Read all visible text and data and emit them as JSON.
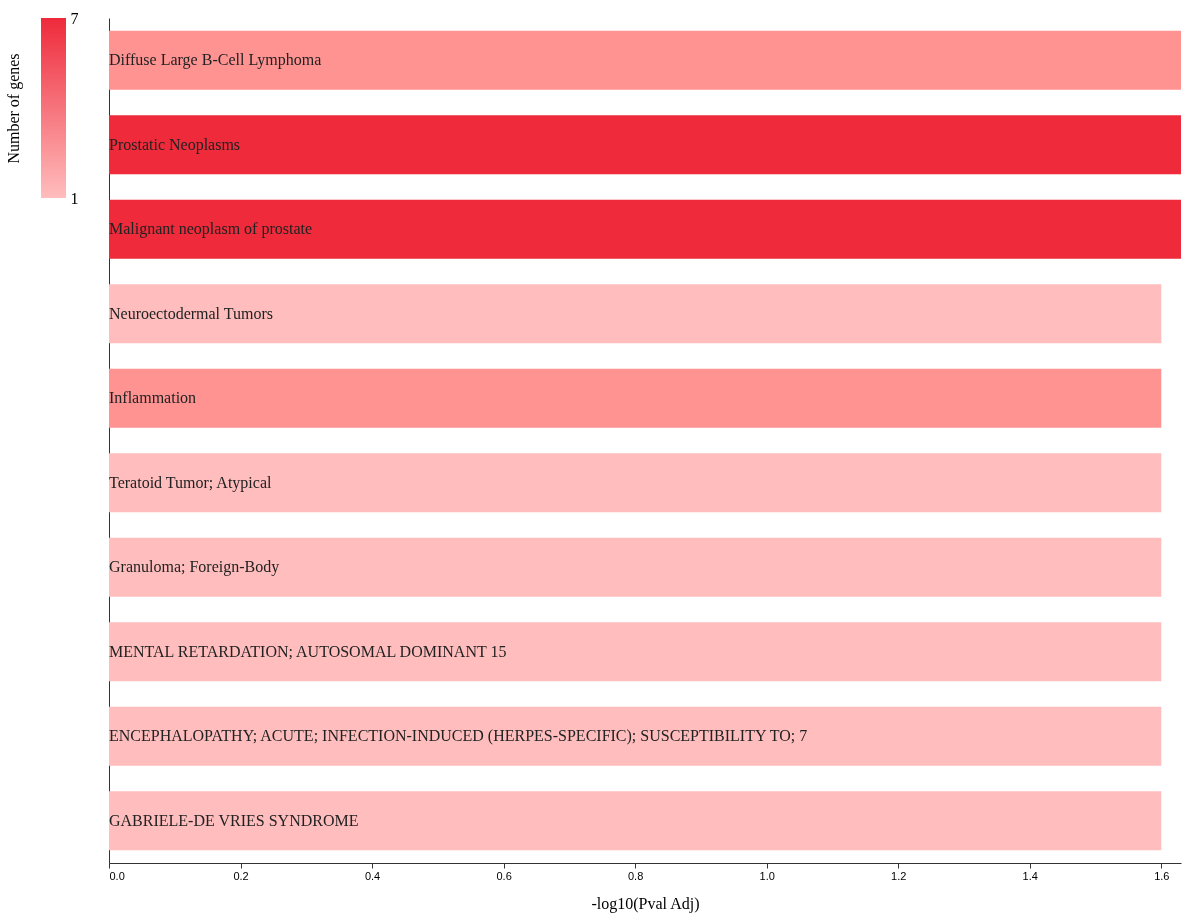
{
  "chart_data": {
    "type": "bar",
    "orientation": "horizontal",
    "categories": [
      "Diffuse Large B-Cell Lymphoma",
      "Prostatic Neoplasms",
      "Malignant neoplasm of prostate",
      "Neuroectodermal Tumors",
      "Inflammation",
      "Teratoid Tumor; Atypical",
      "Granuloma; Foreign-Body",
      "MENTAL RETARDATION; AUTOSOMAL DOMINANT 15",
      "ENCEPHALOPATHY; ACUTE; INFECTION-INDUCED (HERPES-SPECIFIC); SUSCEPTIBILITY TO; 7",
      "GABRIELE-DE VRIES SYNDROME"
    ],
    "values": [
      1.63,
      1.63,
      1.63,
      1.6,
      1.6,
      1.6,
      1.6,
      1.6,
      1.6,
      1.6
    ],
    "cvalues": [
      3,
      7,
      7,
      1,
      3,
      1,
      1,
      1,
      1,
      1
    ],
    "colors": [
      "#f88a8f",
      "#ee2a3b",
      "#ee2a3b",
      "#ffbdbd",
      "#f88a8f",
      "#ffbdbd",
      "#ffbdbd",
      "#ffbdbd",
      "#ffbdbd",
      "#ffbdbd"
    ],
    "clim": [
      1,
      7
    ],
    "cticks": [
      1,
      7
    ],
    "clabel": "Number of genes",
    "xlabel": "-log10(Pval Adj)",
    "xlim": [
      0,
      1.63
    ],
    "xticks": [
      {
        "value": 0,
        "label": "0.0"
      },
      0.2,
      0.4,
      0.6,
      0.8,
      {
        "value": 1,
        "label": "1.0"
      },
      1.2,
      1.4,
      1.6
    ],
    "grid": false
  }
}
